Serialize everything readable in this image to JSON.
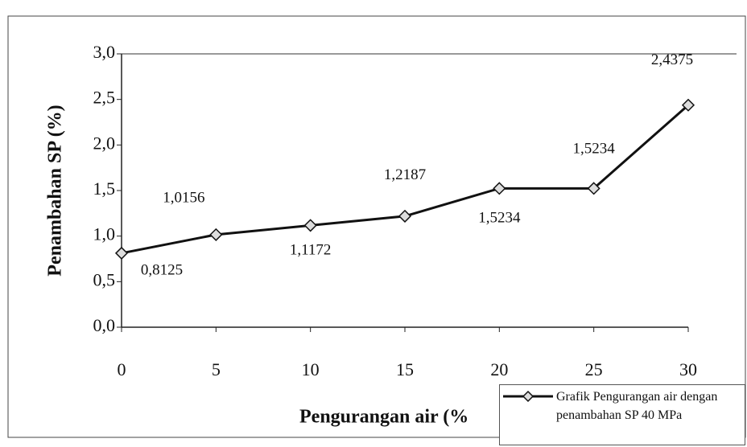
{
  "chart_data": {
    "type": "line",
    "x": [
      0,
      5,
      10,
      15,
      20,
      25,
      30
    ],
    "series": [
      {
        "name": "Grafik Pengurangan air dengan penambahan SP 40 MPa",
        "color": "#111111",
        "values": [
          0.8125,
          1.0156,
          1.1172,
          1.2187,
          1.5234,
          1.5234,
          2.4375
        ],
        "value_labels": [
          "0,8125",
          "1,0156",
          "1,1172",
          "1,2187",
          "1,5234",
          "1,5234",
          "2,4375"
        ]
      }
    ],
    "xlabel": "Pengurangan air (%",
    "ylabel": "Penambahan SP (%)",
    "xlim": [
      0,
      30
    ],
    "xticks": [
      0,
      5,
      10,
      15,
      20,
      25,
      30
    ],
    "ylim": [
      0,
      3
    ],
    "yticks": [
      {
        "value": 0,
        "label": "0,0"
      },
      {
        "value": 0.5,
        "label": "0,5"
      },
      {
        "value": 1,
        "label": "1,0"
      },
      {
        "value": 1.5,
        "label": "1,5"
      },
      {
        "value": 2,
        "label": "2,0"
      },
      {
        "value": 2.5,
        "label": "2,5"
      },
      {
        "value": 3,
        "label": "3,0"
      }
    ]
  }
}
